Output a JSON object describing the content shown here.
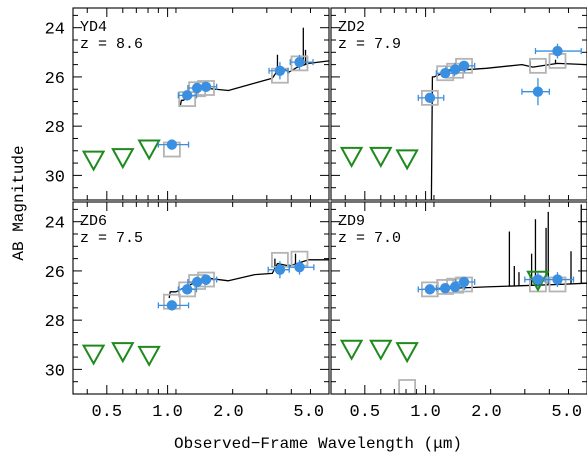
{
  "chart_data": {
    "type": "scatter",
    "x_axis": {
      "label": "Observed−Frame Wavelength (μm)",
      "scale": "log",
      "range": [
        0.34,
        6.3
      ],
      "tick_labels": [
        "0.5",
        "1.0",
        "2.0",
        "5.0"
      ],
      "tick_values": [
        0.5,
        1.0,
        2.0,
        5.0
      ]
    },
    "y_axis": {
      "label": "AB Magnitude",
      "inverted": true,
      "range": [
        31.0,
        23.2
      ],
      "tick_labels": [
        "24",
        "26",
        "28",
        "30"
      ],
      "tick_values": [
        24,
        26,
        28,
        30
      ]
    },
    "colors": {
      "detection": "#3b8fe0",
      "upper_limit": "#1e8a1e",
      "model_photometry": "#b4b4b4",
      "spectrum": "#000000"
    },
    "panels": [
      {
        "id": "YD4",
        "name": "YD4",
        "redshift_label": "z = 8.6",
        "ly_break_um": 1.17,
        "detections": [
          {
            "x": 1.05,
            "xerr": [
              0.15,
              0.22
            ],
            "y": 28.75,
            "yerr": 0.2
          },
          {
            "x": 1.25,
            "xerr": [
              0.12,
              0.14
            ],
            "y": 26.75,
            "yerr": 0.2
          },
          {
            "x": 1.4,
            "xerr": [
              0.14,
              0.16
            ],
            "y": 26.45,
            "yerr": 0.15
          },
          {
            "x": 1.55,
            "xerr": [
              0.15,
              0.2
            ],
            "y": 26.4,
            "yerr": 0.15
          },
          {
            "x": 3.6,
            "xerr": [
              0.42,
              0.35
            ],
            "y": 25.75,
            "yerr": 0.35
          },
          {
            "x": 4.5,
            "xerr": [
              0.45,
              0.75
            ],
            "y": 25.4,
            "yerr": 0.3
          }
        ],
        "upper_limits": [
          {
            "x": 0.43,
            "y": 29.4
          },
          {
            "x": 0.6,
            "y": 29.3
          },
          {
            "x": 0.81,
            "y": 28.95
          }
        ],
        "model_photometry": [
          {
            "x": 1.05,
            "y": 28.95
          },
          {
            "x": 1.25,
            "y": 26.9
          },
          {
            "x": 1.4,
            "y": 26.5
          },
          {
            "x": 1.55,
            "y": 26.45
          },
          {
            "x": 3.6,
            "y": 25.95
          },
          {
            "x": 4.5,
            "y": 25.45
          }
        ],
        "spectrum": {
          "break_mag": 27.15,
          "continuum": [
            [
              1.2,
              26.95
            ],
            [
              1.3,
              26.65
            ],
            [
              1.5,
              26.45
            ],
            [
              2.0,
              26.55
            ],
            [
              2.7,
              26.25
            ],
            [
              3.3,
              26.05
            ],
            [
              3.6,
              25.6
            ],
            [
              4.0,
              25.8
            ],
            [
              4.4,
              25.6
            ],
            [
              5.0,
              25.45
            ],
            [
              6.3,
              25.35
            ]
          ],
          "emission_lines": [
            {
              "x": 3.5,
              "y": 25.1
            },
            {
              "x": 4.7,
              "y": 24.0
            },
            {
              "x": 4.82,
              "y": 24.9
            }
          ]
        }
      },
      {
        "id": "ZD2",
        "name": "ZD2",
        "redshift_label": "z = 7.9",
        "ly_break_um": 1.08,
        "detections": [
          {
            "x": 1.05,
            "xerr": [
              0.13,
              0.18
            ],
            "y": 26.85,
            "yerr": 0.2
          },
          {
            "x": 1.25,
            "xerr": [
              0.12,
              0.14
            ],
            "y": 25.85,
            "yerr": 0.15
          },
          {
            "x": 1.4,
            "xerr": [
              0.14,
              0.16
            ],
            "y": 25.7,
            "yerr": 0.15
          },
          {
            "x": 1.55,
            "xerr": [
              0.15,
              0.2
            ],
            "y": 25.55,
            "yerr": 0.15
          },
          {
            "x": 3.6,
            "xerr": [
              0.6,
              0.5
            ],
            "y": 26.6,
            "yerr": 0.55
          },
          {
            "x": 4.5,
            "xerr": [
              1.0,
              1.4
            ],
            "y": 24.95,
            "yerr": 0.3
          }
        ],
        "upper_limits": [
          {
            "x": 0.43,
            "y": 29.25
          },
          {
            "x": 0.6,
            "y": 29.25
          },
          {
            "x": 0.81,
            "y": 29.35
          }
        ],
        "model_photometry": [
          {
            "x": 1.05,
            "y": 26.85
          },
          {
            "x": 1.25,
            "y": 25.85
          },
          {
            "x": 1.4,
            "y": 25.75
          },
          {
            "x": 1.55,
            "y": 25.55
          },
          {
            "x": 3.6,
            "y": 25.55
          },
          {
            "x": 4.5,
            "y": 25.35
          }
        ],
        "spectrum": {
          "break_mag": 31.0,
          "continuum": [
            [
              1.1,
              26.0
            ],
            [
              1.3,
              25.75
            ],
            [
              2.0,
              25.65
            ],
            [
              3.0,
              25.5
            ],
            [
              3.4,
              25.6
            ],
            [
              4.5,
              25.45
            ],
            [
              6.3,
              25.5
            ]
          ],
          "emission_lines": [
            {
              "x": 3.3,
              "y": 25.35
            },
            {
              "x": 4.4,
              "y": 25.3
            }
          ]
        }
      },
      {
        "id": "ZD6",
        "name": "ZD6",
        "redshift_label": "z = 7.5",
        "ly_break_um": 1.03,
        "detections": [
          {
            "x": 1.05,
            "xerr": [
              0.15,
              0.22
            ],
            "y": 27.4,
            "yerr": 0.2
          },
          {
            "x": 1.25,
            "xerr": [
              0.12,
              0.14
            ],
            "y": 26.75,
            "yerr": 0.2
          },
          {
            "x": 1.4,
            "xerr": [
              0.14,
              0.16
            ],
            "y": 26.45,
            "yerr": 0.15
          },
          {
            "x": 1.55,
            "xerr": [
              0.15,
              0.2
            ],
            "y": 26.35,
            "yerr": 0.15
          },
          {
            "x": 3.6,
            "xerr": [
              0.45,
              0.4
            ],
            "y": 25.95,
            "yerr": 0.35
          },
          {
            "x": 4.5,
            "xerr": [
              0.5,
              0.8
            ],
            "y": 25.85,
            "yerr": 0.3
          }
        ],
        "upper_limits": [
          {
            "x": 0.43,
            "y": 29.4
          },
          {
            "x": 0.6,
            "y": 29.3
          },
          {
            "x": 0.81,
            "y": 29.45
          }
        ],
        "model_photometry": [
          {
            "x": 1.05,
            "y": 27.25
          },
          {
            "x": 1.25,
            "y": 26.75
          },
          {
            "x": 1.4,
            "y": 26.45
          },
          {
            "x": 1.55,
            "y": 26.35
          },
          {
            "x": 3.6,
            "y": 25.55
          },
          {
            "x": 4.5,
            "y": 25.5
          }
        ],
        "spectrum": {
          "break_mag": 27.1,
          "continuum": [
            [
              1.1,
              26.85
            ],
            [
              1.3,
              26.55
            ],
            [
              1.6,
              26.3
            ],
            [
              2.0,
              26.4
            ],
            [
              2.7,
              26.15
            ],
            [
              3.3,
              26.1
            ],
            [
              3.5,
              25.7
            ],
            [
              4.0,
              25.8
            ],
            [
              5.0,
              25.55
            ],
            [
              6.3,
              25.55
            ]
          ],
          "emission_lines": [
            {
              "x": 3.4,
              "y": 25.5
            },
            {
              "x": 4.3,
              "y": 25.3
            }
          ]
        }
      },
      {
        "id": "ZD9",
        "name": "ZD9",
        "redshift_label": "z = 7.0",
        "ly_break_um": 0.97,
        "detections": [
          {
            "x": 1.05,
            "xerr": [
              0.13,
              0.16
            ],
            "y": 26.75,
            "yerr": 0.2
          },
          {
            "x": 1.25,
            "xerr": [
              0.12,
              0.14
            ],
            "y": 26.7,
            "yerr": 0.15
          },
          {
            "x": 1.4,
            "xerr": [
              0.14,
              0.16
            ],
            "y": 26.65,
            "yerr": 0.15
          },
          {
            "x": 1.55,
            "xerr": [
              0.15,
              0.2
            ],
            "y": 26.45,
            "yerr": 0.15
          },
          {
            "x": 3.6,
            "xerr": [
              0.5,
              0.45
            ],
            "y": 26.35,
            "yerr": 0.3
          },
          {
            "x": 4.5,
            "xerr": [
              0.6,
              0.9
            ],
            "y": 26.35,
            "yerr": 0.3
          }
        ],
        "upper_limits": [
          {
            "x": 0.43,
            "y": 29.2
          },
          {
            "x": 0.6,
            "y": 29.2
          },
          {
            "x": 0.81,
            "y": 29.3
          },
          {
            "x": 3.6,
            "y": 26.4
          }
        ],
        "model_photometry": [
          {
            "x": 0.81,
            "y": 31.0
          },
          {
            "x": 1.05,
            "y": 26.75
          },
          {
            "x": 1.25,
            "y": 26.65
          },
          {
            "x": 1.4,
            "y": 26.6
          },
          {
            "x": 1.55,
            "y": 26.55
          },
          {
            "x": 3.6,
            "y": 26.55
          },
          {
            "x": 4.5,
            "y": 26.55
          }
        ],
        "spectrum": {
          "break_mag": 26.8,
          "continuum": [
            [
              1.0,
              26.75
            ],
            [
              2.0,
              26.65
            ],
            [
              3.0,
              26.6
            ],
            [
              4.5,
              26.55
            ],
            [
              6.3,
              26.5
            ]
          ],
          "emission_lines": [
            {
              "x": 2.6,
              "y": 24.4
            },
            {
              "x": 2.75,
              "y": 25.8
            },
            {
              "x": 2.9,
              "y": 26.05
            },
            {
              "x": 3.35,
              "y": 25.3
            },
            {
              "x": 3.5,
              "y": 23.9
            },
            {
              "x": 3.95,
              "y": 24.25
            },
            {
              "x": 4.05,
              "y": 23.6
            },
            {
              "x": 5.25,
              "y": 25.2
            },
            {
              "x": 5.9,
              "y": 23.3
            }
          ]
        }
      }
    ]
  }
}
